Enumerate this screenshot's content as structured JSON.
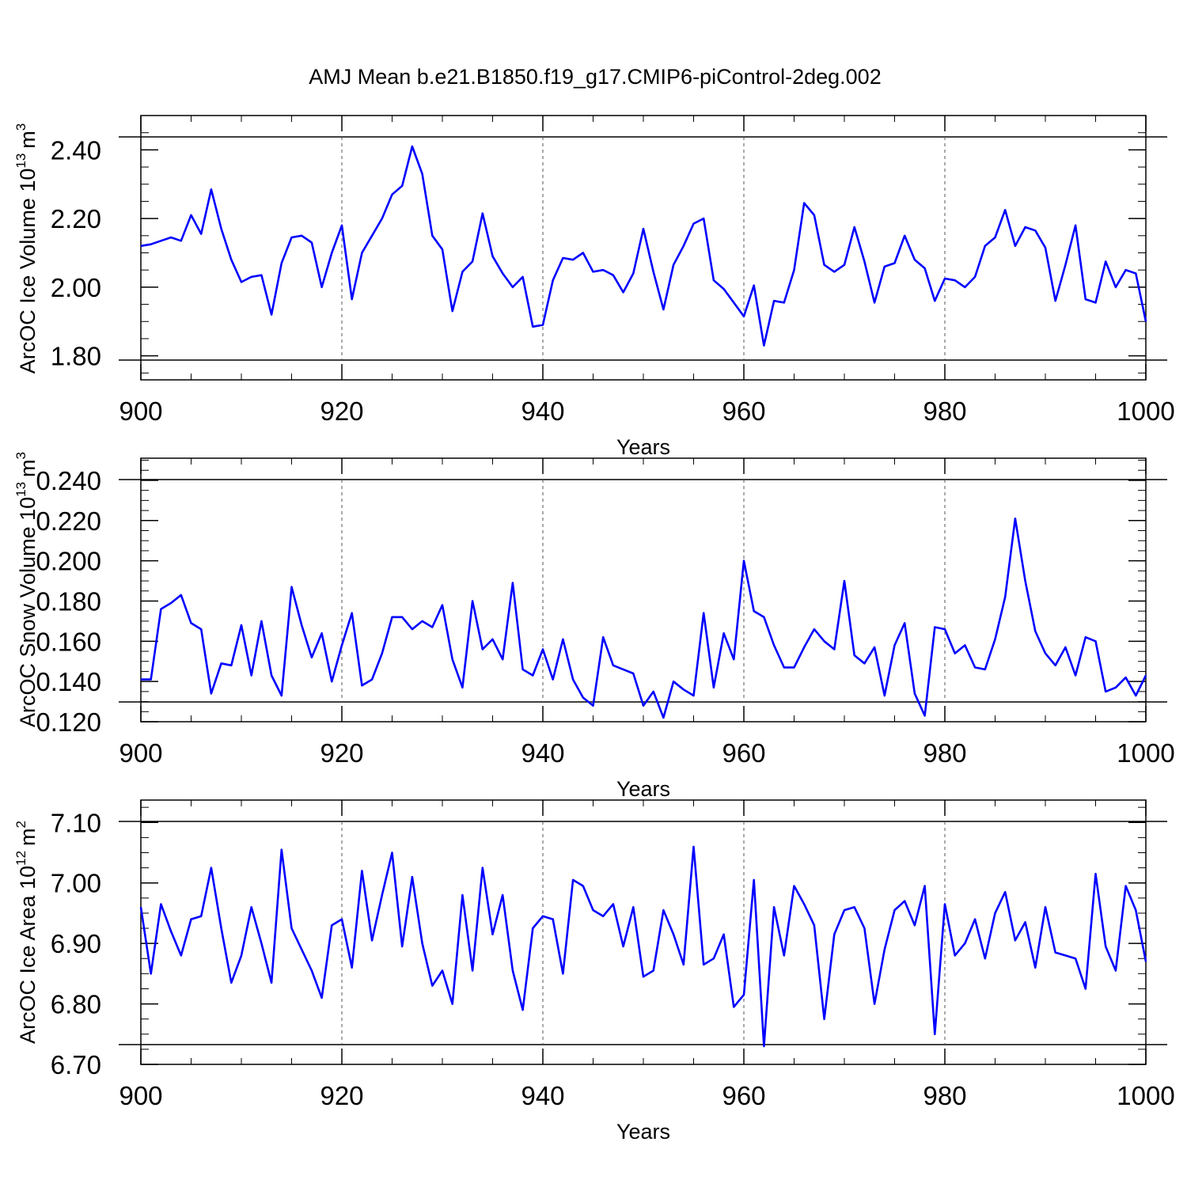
{
  "title": "AMJ Mean b.e21.B1850.f19_g17.CMIP6-piControl-2deg.002",
  "line_color": "#0000ff",
  "chart_data": [
    {
      "type": "line",
      "ylabel": {
        "text": "ArcOC Ice Volume 10",
        "exponent": "13",
        "unit": "m",
        "unit_exponent": "3"
      },
      "xlabel": "Years",
      "xlim": [
        900,
        1000
      ],
      "ylim": [
        1.73,
        2.5
      ],
      "x_ticks": [
        "900",
        "920",
        "940",
        "960",
        "980",
        "1000"
      ],
      "y_ticks": [
        {
          "value": 1.8,
          "label": "1.80"
        },
        {
          "value": 2.0,
          "label": "2.00"
        },
        {
          "value": 2.2,
          "label": "2.20"
        },
        {
          "value": 2.4,
          "label": "2.40"
        }
      ],
      "x_start": 900,
      "y": [
        2.12,
        2.125,
        2.135,
        2.145,
        2.135,
        2.21,
        2.155,
        2.285,
        2.17,
        2.08,
        2.015,
        2.03,
        2.035,
        1.92,
        2.07,
        2.145,
        2.15,
        2.13,
        2.0,
        2.1,
        2.18,
        1.965,
        2.1,
        2.15,
        2.2,
        2.27,
        2.295,
        2.41,
        2.33,
        2.15,
        2.11,
        1.93,
        2.045,
        2.075,
        2.215,
        2.09,
        2.04,
        2.0,
        2.03,
        1.885,
        1.89,
        2.02,
        2.085,
        2.08,
        2.1,
        2.045,
        2.05,
        2.035,
        1.985,
        2.04,
        2.17,
        2.045,
        1.935,
        2.065,
        2.12,
        2.185,
        2.2,
        2.02,
        1.995,
        1.955,
        1.915,
        2.005,
        1.83,
        1.96,
        1.955,
        2.05,
        2.245,
        2.21,
        2.065,
        2.045,
        2.065,
        2.175,
        2.075,
        1.955,
        2.06,
        2.07,
        2.15,
        2.08,
        2.055,
        1.96,
        2.025,
        2.02,
        2.0,
        2.03,
        2.12,
        2.145,
        2.225,
        2.12,
        2.175,
        2.165,
        2.115,
        1.96,
        2.065,
        2.18,
        1.965,
        1.955,
        2.075,
        2.0,
        2.05,
        2.04,
        1.9
      ]
    },
    {
      "type": "line",
      "ylabel": {
        "text": "ArcOC Snow Volume 10",
        "exponent": "13",
        "unit": "m",
        "unit_exponent": "3"
      },
      "xlabel": "Years",
      "xlim": [
        900,
        1000
      ],
      "ylim": [
        0.12,
        0.251
      ],
      "x_ticks": [
        "900",
        "920",
        "940",
        "960",
        "980",
        "1000"
      ],
      "y_ticks": [
        {
          "value": 0.12,
          "label": "0.120"
        },
        {
          "value": 0.14,
          "label": "0.140"
        },
        {
          "value": 0.16,
          "label": "0.160"
        },
        {
          "value": 0.18,
          "label": "0.180"
        },
        {
          "value": 0.2,
          "label": "0.200"
        },
        {
          "value": 0.22,
          "label": "0.220"
        },
        {
          "value": 0.24,
          "label": "0.240"
        }
      ],
      "x_start": 900,
      "y": [
        0.141,
        0.141,
        0.176,
        0.179,
        0.183,
        0.169,
        0.166,
        0.134,
        0.149,
        0.148,
        0.168,
        0.143,
        0.17,
        0.143,
        0.133,
        0.187,
        0.168,
        0.152,
        0.164,
        0.14,
        0.158,
        0.174,
        0.138,
        0.141,
        0.154,
        0.172,
        0.172,
        0.166,
        0.17,
        0.167,
        0.178,
        0.151,
        0.137,
        0.18,
        0.156,
        0.161,
        0.151,
        0.189,
        0.146,
        0.143,
        0.156,
        0.141,
        0.161,
        0.141,
        0.132,
        0.128,
        0.162,
        0.148,
        0.146,
        0.144,
        0.128,
        0.135,
        0.122,
        0.14,
        0.136,
        0.133,
        0.174,
        0.137,
        0.164,
        0.151,
        0.2,
        0.175,
        0.172,
        0.158,
        0.147,
        0.147,
        0.157,
        0.166,
        0.16,
        0.156,
        0.19,
        0.153,
        0.149,
        0.157,
        0.133,
        0.158,
        0.169,
        0.134,
        0.123,
        0.167,
        0.166,
        0.154,
        0.158,
        0.147,
        0.146,
        0.161,
        0.182,
        0.221,
        0.19,
        0.165,
        0.154,
        0.148,
        0.157,
        0.143,
        0.162,
        0.16,
        0.135,
        0.137,
        0.142,
        0.133,
        0.143
      ]
    },
    {
      "type": "line",
      "ylabel": {
        "text": "ArcOC Ice Area 10",
        "exponent": "12",
        "unit": "m",
        "unit_exponent": "2"
      },
      "xlabel": "Years",
      "xlim": [
        900,
        1000
      ],
      "ylim": [
        6.7,
        7.137
      ],
      "x_ticks": [
        "900",
        "920",
        "940",
        "960",
        "980",
        "1000"
      ],
      "y_ticks": [
        {
          "value": 6.7,
          "label": "6.70"
        },
        {
          "value": 6.8,
          "label": "6.80"
        },
        {
          "value": 6.9,
          "label": "6.90"
        },
        {
          "value": 7.0,
          "label": "7.00"
        },
        {
          "value": 7.1,
          "label": "7.10"
        }
      ],
      "x_start": 900,
      "y": [
        6.96,
        6.85,
        6.965,
        6.92,
        6.88,
        6.94,
        6.945,
        7.025,
        6.925,
        6.835,
        6.88,
        6.96,
        6.9,
        6.835,
        7.055,
        6.925,
        6.89,
        6.855,
        6.81,
        6.93,
        6.94,
        6.86,
        7.02,
        6.905,
        6.98,
        7.05,
        6.895,
        7.01,
        6.9,
        6.83,
        6.855,
        6.8,
        6.98,
        6.855,
        7.025,
        6.915,
        6.98,
        6.855,
        6.79,
        6.925,
        6.945,
        6.94,
        6.85,
        7.005,
        6.995,
        6.955,
        6.945,
        6.965,
        6.895,
        6.96,
        6.845,
        6.855,
        6.955,
        6.915,
        6.865,
        7.06,
        6.865,
        6.875,
        6.915,
        6.795,
        6.815,
        7.005,
        6.73,
        6.96,
        6.88,
        6.995,
        6.965,
        6.93,
        6.775,
        6.915,
        6.955,
        6.96,
        6.925,
        6.8,
        6.89,
        6.955,
        6.97,
        6.93,
        6.995,
        6.75,
        6.965,
        6.88,
        6.9,
        6.94,
        6.875,
        6.95,
        6.985,
        6.905,
        6.935,
        6.86,
        6.96,
        6.885,
        6.88,
        6.875,
        6.825,
        7.015,
        6.895,
        6.855,
        6.995,
        6.955,
        6.87
      ]
    }
  ]
}
